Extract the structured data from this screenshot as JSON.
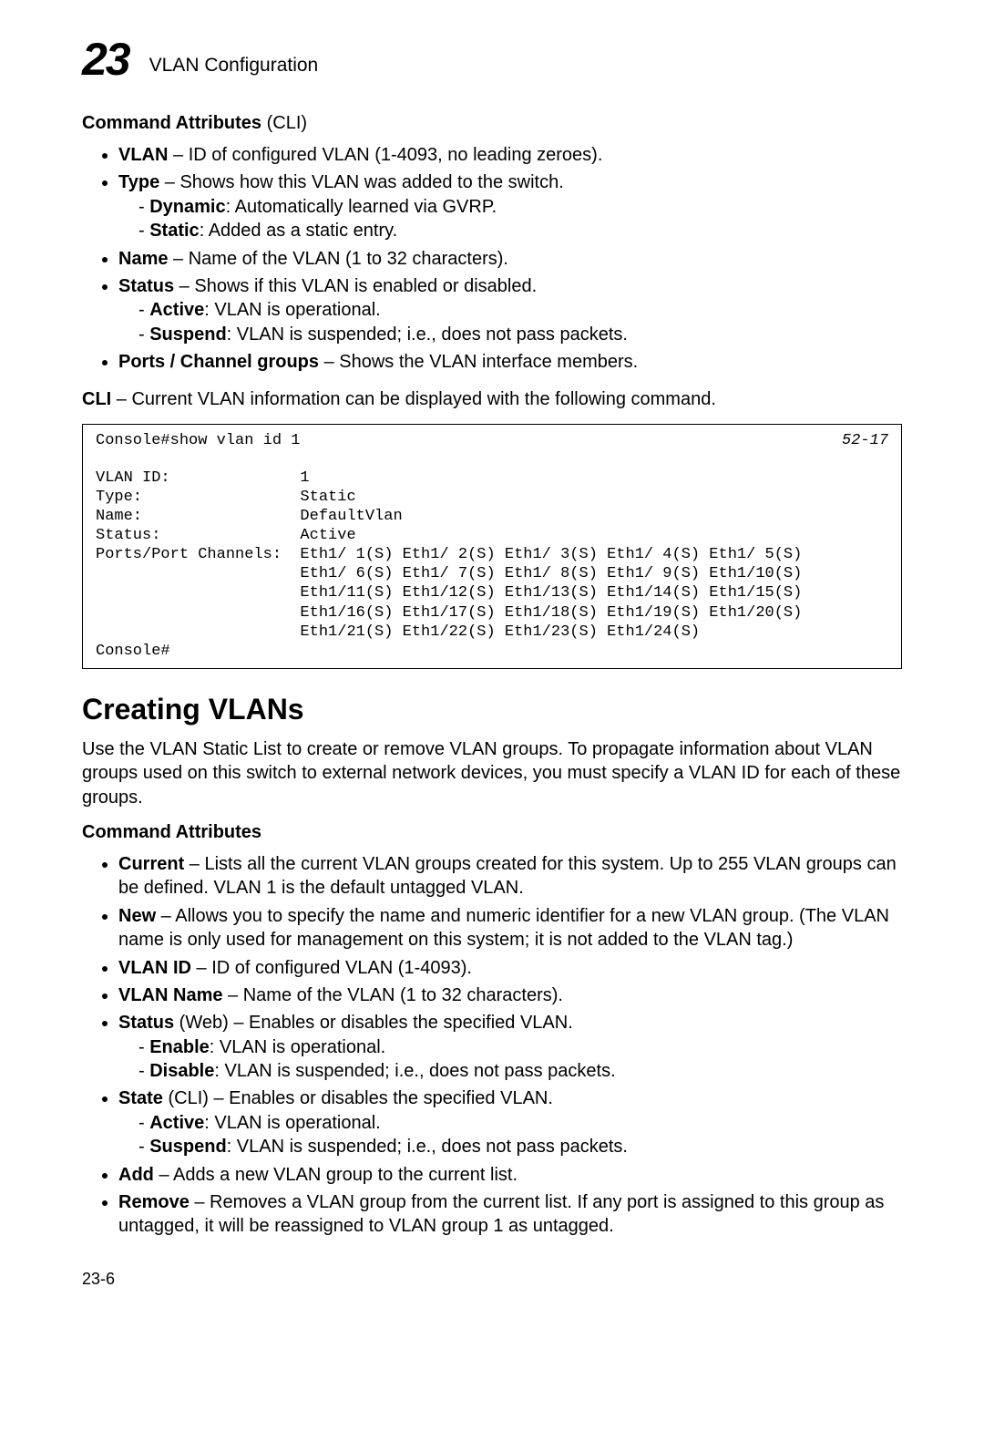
{
  "header": {
    "chapter_num": "23",
    "chapter_title": "VLAN Configuration"
  },
  "sec1": {
    "title_bold": "Command Attributes",
    "title_plain": " (CLI)",
    "items": {
      "vlan_b": "VLAN",
      "vlan_t": " – ID of configured VLAN (1-4093, no leading zeroes).",
      "type_b": "Type",
      "type_t": " – Shows how this VLAN was added to the switch.",
      "type_s1_b": "Dynamic",
      "type_s1_t": ": Automatically learned via GVRP.",
      "type_s2_b": "Static",
      "type_s2_t": ": Added as a static entry.",
      "name_b": "Name",
      "name_t": " – Name of the VLAN (1 to 32 characters).",
      "status_b": "Status",
      "status_t": " – Shows if this VLAN is enabled or disabled.",
      "status_s1_b": "Active",
      "status_s1_t": ": VLAN is operational.",
      "status_s2_b": "Suspend",
      "status_s2_t": ": VLAN is suspended; i.e., does not pass packets.",
      "ports_b": "Ports / Channel groups",
      "ports_t": " – Shows the VLAN interface members."
    }
  },
  "cli_intro_b": "CLI",
  "cli_intro_t": " – Current VLAN information can be displayed with the following command.",
  "cli": {
    "cmd": "Console#show vlan id 1",
    "ref": "52-17",
    "body": "\nVLAN ID:              1\nType:                 Static\nName:                 DefaultVlan\nStatus:               Active\nPorts/Port Channels:  Eth1/ 1(S) Eth1/ 2(S) Eth1/ 3(S) Eth1/ 4(S) Eth1/ 5(S)\n                      Eth1/ 6(S) Eth1/ 7(S) Eth1/ 8(S) Eth1/ 9(S) Eth1/10(S)\n                      Eth1/11(S) Eth1/12(S) Eth1/13(S) Eth1/14(S) Eth1/15(S)\n                      Eth1/16(S) Eth1/17(S) Eth1/18(S) Eth1/19(S) Eth1/20(S)\n                      Eth1/21(S) Eth1/22(S) Eth1/23(S) Eth1/24(S)\nConsole#"
  },
  "h2": "Creating VLANs",
  "para1": "Use the VLAN Static List to create or remove VLAN groups. To propagate information about VLAN groups used on this switch to external network devices, you must specify a VLAN ID for each of these groups.",
  "sec2": {
    "title": "Command Attributes",
    "items": {
      "current_b": "Current",
      "current_t": " – Lists all the current VLAN groups created for this system. Up to 255 VLAN groups can be defined. VLAN 1 is the default untagged VLAN.",
      "new_b": "New",
      "new_t": " – Allows you to specify the name and numeric identifier for a new VLAN group. (The VLAN name is only used for management on this system; it is not added to the VLAN tag.)",
      "vlanid_b": "VLAN ID",
      "vlanid_t": " – ID of configured VLAN (1-4093).",
      "vlanname_b": "VLAN Name",
      "vlanname_t": " – Name of the VLAN (1 to 32 characters).",
      "statusw_b": "Status",
      "statusw_t": " (Web) – Enables or disables the specified VLAN.",
      "statusw_s1_b": "Enable",
      "statusw_s1_t": ": VLAN is operational.",
      "statusw_s2_b": "Disable",
      "statusw_s2_t": ": VLAN is suspended; i.e., does not pass packets.",
      "statec_b": "State",
      "statec_t": " (CLI) – Enables or disables the specified VLAN.",
      "statec_s1_b": "Active",
      "statec_s1_t": ": VLAN is operational.",
      "statec_s2_b": "Suspend",
      "statec_s2_t": ": VLAN is suspended; i.e., does not pass packets.",
      "add_b": "Add",
      "add_t": " – Adds a new VLAN group to the current list.",
      "remove_b": "Remove",
      "remove_t": " – Removes a VLAN group from the current list. If any port is assigned to this group as untagged, it will be reassigned to VLAN group 1 as untagged."
    }
  },
  "pageno": "23-6"
}
